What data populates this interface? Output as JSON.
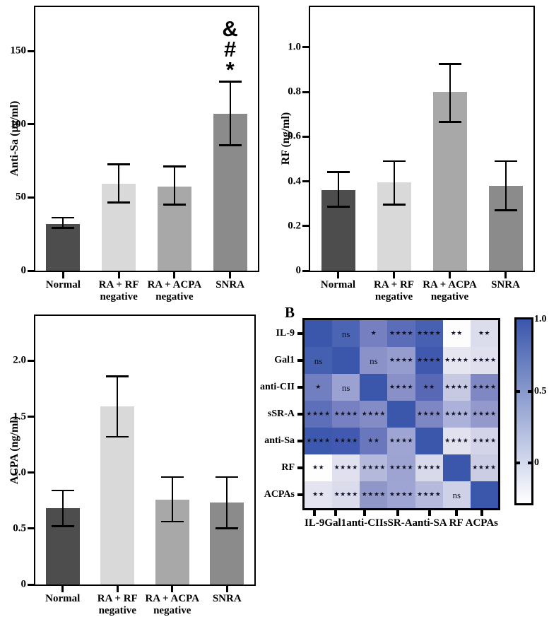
{
  "chart_data": [
    {
      "type": "bar",
      "panel": "top-left",
      "ylabel": "Anti-Sa (µg/ml)",
      "ylim": [
        0,
        180
      ],
      "yticks": [
        {
          "v": 0,
          "label": "0"
        },
        {
          "v": 50,
          "label": "50"
        },
        {
          "v": 100,
          "label": "100"
        },
        {
          "v": 150,
          "label": "150"
        }
      ],
      "categories": [
        "Normal",
        "RA + RF\nnegative",
        "RA + ACPA\nnegative",
        "SNRA"
      ],
      "values": [
        32,
        59.5,
        57.5,
        107
      ],
      "err_low": [
        29,
        46.5,
        45,
        85.5
      ],
      "err_high": [
        36,
        72.5,
        71,
        129
      ],
      "bar_colors": [
        "#4d4d4d",
        "#d9d9d9",
        "#a8a8a8",
        "#8b8b8b"
      ],
      "annotations": [
        [],
        [],
        [],
        [
          "&",
          "#",
          "*"
        ]
      ]
    },
    {
      "type": "bar",
      "panel": "top-right",
      "ylabel": "RF (ng/ml)",
      "ylim": [
        0,
        1.18
      ],
      "yticks": [
        {
          "v": 0,
          "label": "0"
        },
        {
          "v": 0.2,
          "label": "0.2"
        },
        {
          "v": 0.4,
          "label": "0.4"
        },
        {
          "v": 0.6,
          "label": "0.6"
        },
        {
          "v": 0.8,
          "label": "0.8"
        },
        {
          "v": 1.0,
          "label": "1.0"
        }
      ],
      "categories": [
        "Normal",
        "RA + RF\nnegative",
        "RA + ACPA\nnegative",
        "SNRA"
      ],
      "values": [
        0.36,
        0.395,
        0.8,
        0.38
      ],
      "err_low": [
        0.285,
        0.295,
        0.665,
        0.27
      ],
      "err_high": [
        0.44,
        0.49,
        0.925,
        0.49
      ],
      "bar_colors": [
        "#4d4d4d",
        "#d9d9d9",
        "#a8a8a8",
        "#8b8b8b"
      ],
      "annotations": [
        [],
        [],
        [],
        []
      ]
    },
    {
      "type": "bar",
      "panel": "bottom-left",
      "ylabel": "ACPA (ng/ml)",
      "ylim": [
        0,
        2.4
      ],
      "yticks": [
        {
          "v": 0,
          "label": "0"
        },
        {
          "v": 0.5,
          "label": "0.5"
        },
        {
          "v": 1.0,
          "label": "1.0"
        },
        {
          "v": 1.5,
          "label": "1.5"
        },
        {
          "v": 2.0,
          "label": "2.0"
        }
      ],
      "categories": [
        "Normal",
        "RA + RF\nnegative",
        "RA + ACPA\nnegative",
        "SNRA"
      ],
      "values": [
        0.68,
        1.59,
        0.76,
        0.73
      ],
      "err_low": [
        0.52,
        1.32,
        0.56,
        0.5
      ],
      "err_high": [
        0.84,
        1.86,
        0.96,
        0.96
      ],
      "bar_colors": [
        "#4d4d4d",
        "#d9d9d9",
        "#a8a8a8",
        "#8b8b8b"
      ],
      "annotations": [
        [],
        [],
        [],
        []
      ]
    },
    {
      "type": "heatmap",
      "panel": "bottom-right",
      "panel_label": "B",
      "row_labels": [
        "IL-9",
        "Gal1",
        "anti-CII",
        "sSR-A",
        "anti-Sa",
        "RF",
        "ACPAs"
      ],
      "col_labels": [
        "IL-9",
        "Gal1",
        "anti-CII",
        "sSR-A",
        "anti-SA",
        "RF",
        "ACPAs"
      ],
      "cell_colors": [
        [
          "#3a57ac",
          "#4c64b4",
          "#7680c0",
          "#5b6cb8",
          "#4760b1",
          "#fdfdfe",
          "#dcddec"
        ],
        [
          "#4560b0",
          "#3a57ac",
          "#8a92c8",
          "#959cce",
          "#4058ad",
          "#e6e6f1",
          "#dfdfee"
        ],
        [
          "#717ec0",
          "#9ba2d1",
          "#3a57ac",
          "#8890c7",
          "#5868b4",
          "#c7c9e3",
          "#8088c3"
        ],
        [
          "#5e6fba",
          "#7781c1",
          "#838cc5",
          "#3a57ac",
          "#7e87c4",
          "#abb1d8",
          "#9399cb"
        ],
        [
          "#3d59af",
          "#4159b0",
          "#6b77bc",
          "#9fa5d2",
          "#3a57ac",
          "#e2e2ef",
          "#d3d4e8"
        ],
        [
          "#fefefe",
          "#e0e0ee",
          "#b4b8db",
          "#9da4d2",
          "#d8d9ea",
          "#3a57ac",
          "#cbcde5"
        ],
        [
          "#e4e4f0",
          "#dadbeb",
          "#8f97c9",
          "#9ea5d2",
          "#b6badc",
          "#cfd1e6",
          "#3a57ac"
        ]
      ],
      "cell_annotations": [
        [
          "",
          "ns",
          "*",
          "****",
          "****",
          "**",
          "**"
        ],
        [
          "ns",
          "",
          "ns",
          "****",
          "****",
          "****",
          "****"
        ],
        [
          "*",
          "ns",
          "",
          "****",
          "**",
          "****",
          "****"
        ],
        [
          "****",
          "****",
          "****",
          "",
          "****",
          "****",
          "****"
        ],
        [
          "****",
          "****",
          "**",
          "****",
          "",
          "****",
          "****"
        ],
        [
          "**",
          "****",
          "****",
          "****",
          "****",
          "",
          "****"
        ],
        [
          "**",
          "****",
          "****",
          "****",
          "****",
          "ns",
          ""
        ]
      ],
      "colorbar": {
        "min": -0.28,
        "max": 1.0,
        "top_color": "#3b57ac",
        "bottom_color": "#ffffff",
        "ticks": [
          {
            "v": 1.0,
            "label": "1.0",
            "tick": false
          },
          {
            "v": 0.5,
            "label": "0.5",
            "tick": true
          },
          {
            "v": 0.0,
            "label": "0",
            "tick": true
          }
        ]
      }
    }
  ]
}
